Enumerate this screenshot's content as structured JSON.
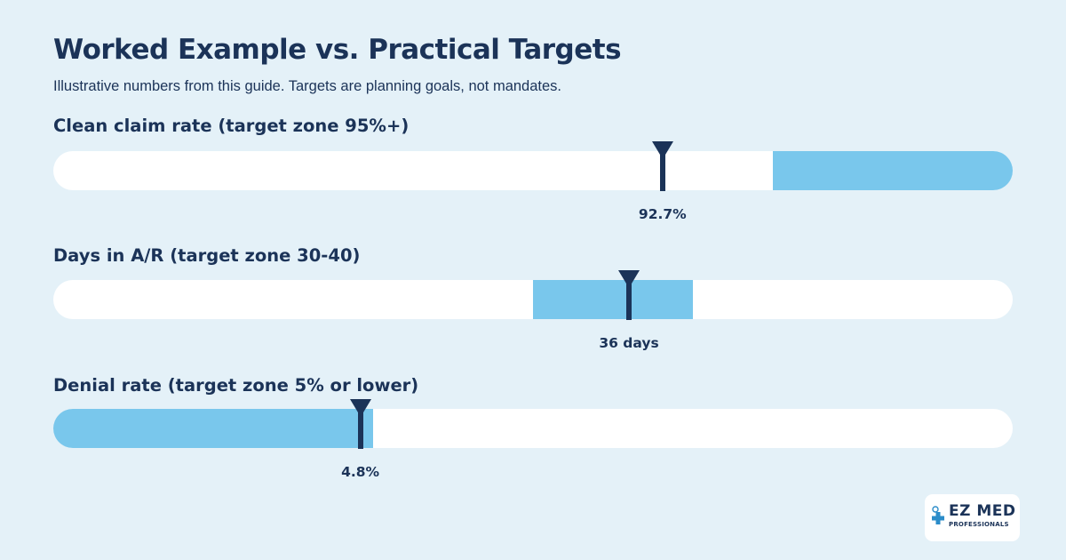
{
  "title": "Worked Example vs. Practical Targets",
  "subtitle": "Illustrative numbers from this guide. Targets are planning goals, not mandates.",
  "colors": {
    "background": "#e4f1f8",
    "track": "#ffffff",
    "target_zone": "#79c7ec",
    "marker": "#1b3358",
    "text": "#1b3358",
    "logo_cross": "#2b8cc9"
  },
  "logo": {
    "main": "EZ MED",
    "sub": "PROFESSIONALS"
  },
  "chart_data": {
    "type": "bullet",
    "title": "Worked Example vs. Practical Targets",
    "subtitle": "Illustrative numbers from this guide. Targets are planning goals, not mandates.",
    "metrics": [
      {
        "label": "Clean claim rate (target zone 95%+)",
        "value": 92.7,
        "value_label": "92.7%",
        "axis_range": [
          80,
          100
        ],
        "target_zone": [
          95,
          100
        ]
      },
      {
        "label": "Days in A/R (target zone 30-40)",
        "value": 36,
        "value_label": "36 days",
        "axis_range": [
          0,
          60
        ],
        "target_zone": [
          30,
          40
        ]
      },
      {
        "label": "Denial rate (target zone 5% or lower)",
        "value": 4.8,
        "value_label": "4.8%",
        "axis_range": [
          0,
          15
        ],
        "target_zone": [
          0,
          5
        ]
      }
    ]
  }
}
